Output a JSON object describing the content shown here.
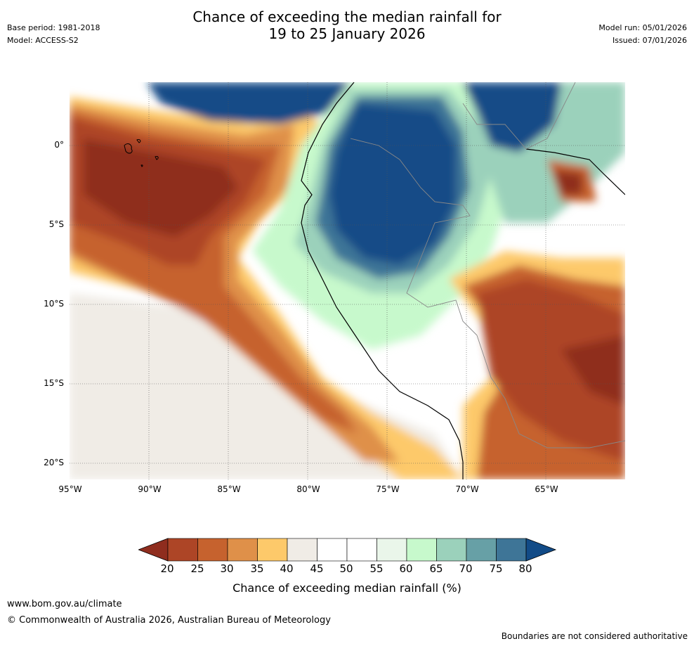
{
  "title": {
    "line1": "Chance of exceeding the median rainfall for",
    "line2": "19 to 25 January 2026"
  },
  "meta": {
    "base_period": "Base period: 1981-2018",
    "model": "Model: ACCESS-S2",
    "model_run": "Model run: 05/01/2026",
    "issued": "Issued: 07/01/2026"
  },
  "axes": {
    "lat_labels": [
      "0°",
      "5°S",
      "10°S",
      "15°S",
      "20°S"
    ],
    "lat_values": [
      0,
      -5,
      -10,
      -15,
      -20
    ],
    "lon_labels": [
      "95°W",
      "90°W",
      "85°W",
      "80°W",
      "75°W",
      "70°W",
      "65°W"
    ],
    "lon_values": [
      -95,
      -90,
      -85,
      -80,
      -75,
      -70,
      -65
    ],
    "lon_range": [
      -95,
      -60
    ],
    "lat_range": [
      -21,
      4
    ]
  },
  "legend": {
    "ticks": [
      "20",
      "25",
      "30",
      "35",
      "40",
      "45",
      "50",
      "55",
      "60",
      "65",
      "70",
      "75",
      "80"
    ],
    "colors": [
      "#8f2d1e",
      "#ad4526",
      "#c6622e",
      "#df9049",
      "#fdc96a",
      "#f0ece6",
      "#ffffff",
      "#ffffff",
      "#eaf6ea",
      "#c7f9cc",
      "#9bd1bb",
      "#67a0a6",
      "#3e7597",
      "#124b87"
    ],
    "label": "Chance of exceeding median rainfall (%)"
  },
  "footer": {
    "url": "www.bom.gov.au/climate",
    "copyright": "© Commonwealth of Australia 2026, Australian Bureau of Meteorology",
    "disclaimer": "Boundaries are not considered authoritative"
  }
}
